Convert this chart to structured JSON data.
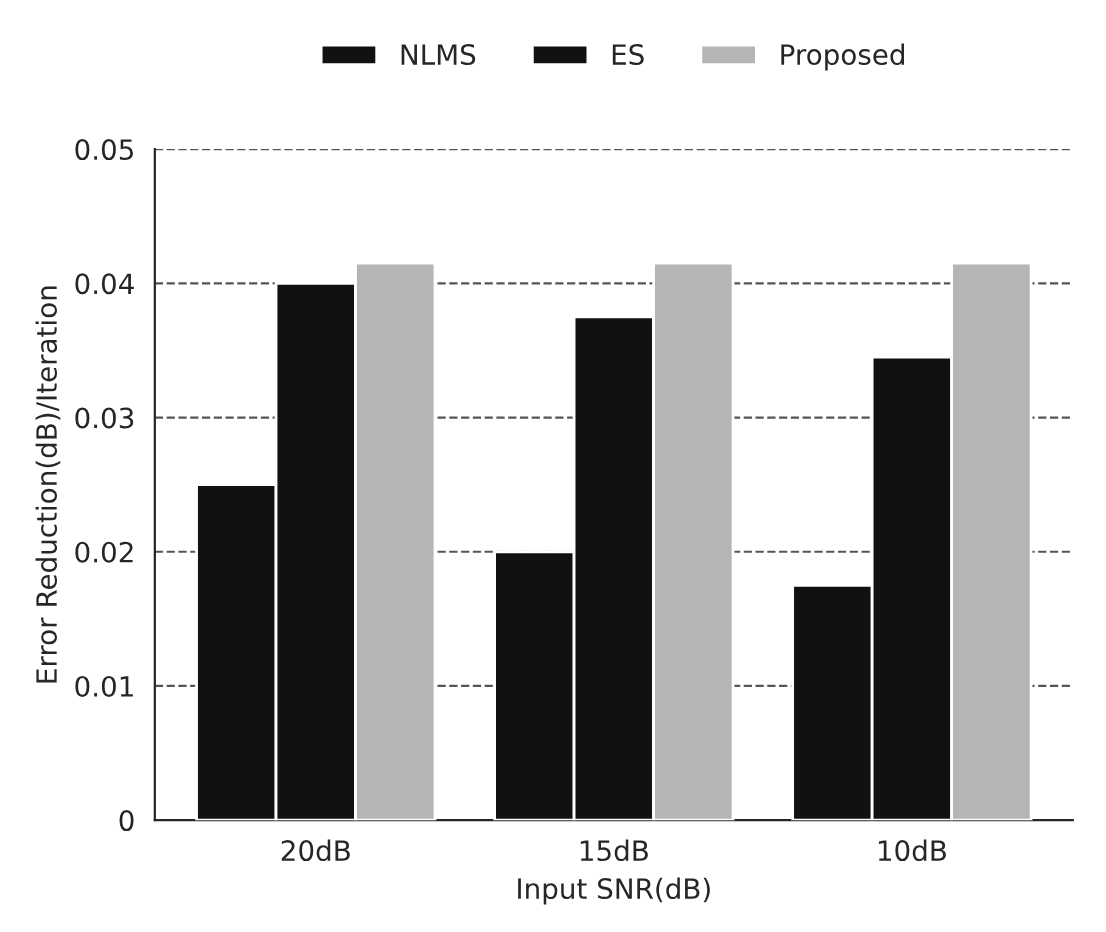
{
  "chart_data": {
    "type": "bar",
    "xlabel": "Input SNR(dB)",
    "ylabel": "Error Reduction(dB)/Iteration",
    "categories": [
      "20dB",
      "15dB",
      "10dB"
    ],
    "series": [
      {
        "name": "NLMS",
        "color": "#111111",
        "values": [
          0.025,
          0.02,
          0.0175
        ]
      },
      {
        "name": "ES",
        "color": "#111111",
        "values": [
          0.04,
          0.0375,
          0.0345
        ]
      },
      {
        "name": "Proposed",
        "color": "#b5b5b5",
        "values": [
          0.0415,
          0.0415,
          0.0415
        ]
      }
    ],
    "ylim": [
      0,
      0.05
    ],
    "yticks": [
      0,
      0.01,
      0.02,
      0.03,
      0.04,
      0.05
    ],
    "grid": "y",
    "legend": "top"
  }
}
